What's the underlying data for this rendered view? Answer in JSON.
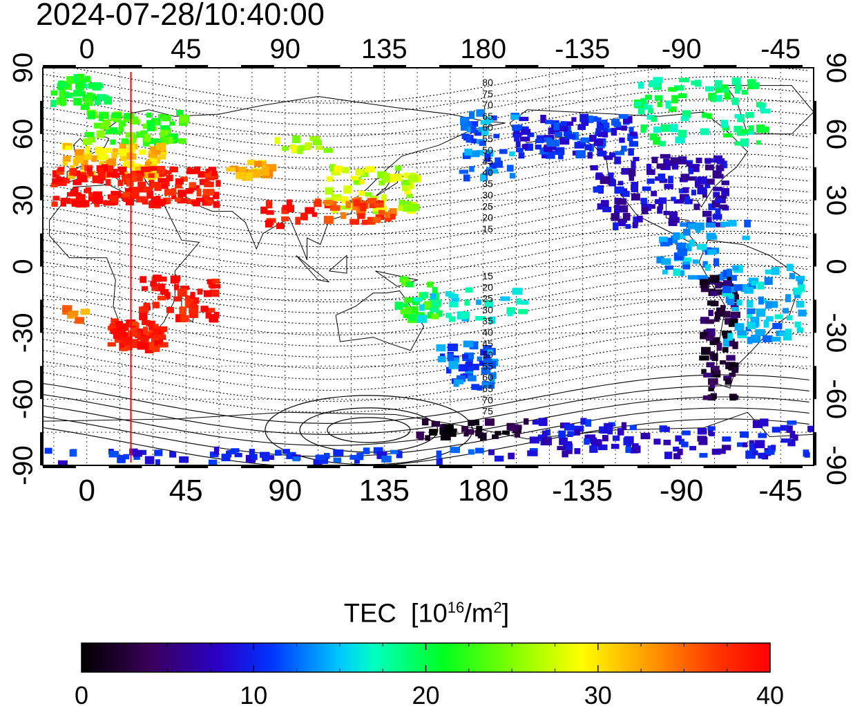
{
  "timestamp": "2024-07-28/10:40:00",
  "colorbar": {
    "label": "TEC",
    "unit_base": "[10",
    "unit_exp": "16",
    "unit_mid": "/m",
    "unit_exp2": "2",
    "unit_close": "]",
    "min": 0,
    "max": 40,
    "tick_labels": [
      "0",
      "10",
      "20",
      "30",
      "40"
    ],
    "tick_values": [
      0,
      10,
      20,
      30,
      40
    ],
    "minor_ticks": [
      2.5,
      5,
      7.5,
      12.5,
      15,
      17.5,
      22.5,
      25,
      27.5,
      32.5,
      35,
      37.5
    ],
    "stops": [
      {
        "v": 0,
        "c": "#000000"
      },
      {
        "v": 4,
        "c": "#3a005a"
      },
      {
        "v": 8,
        "c": "#2a00c8"
      },
      {
        "v": 11,
        "c": "#0033ff"
      },
      {
        "v": 15,
        "c": "#00c8ff"
      },
      {
        "v": 17,
        "c": "#00ffc0"
      },
      {
        "v": 21,
        "c": "#00ff20"
      },
      {
        "v": 25,
        "c": "#80ff00"
      },
      {
        "v": 29,
        "c": "#ffff00"
      },
      {
        "v": 33,
        "c": "#ff9900"
      },
      {
        "v": 37,
        "c": "#ff3300"
      },
      {
        "v": 40,
        "c": "#ff0000"
      }
    ]
  },
  "map": {
    "lon_ticks": [
      0,
      45,
      90,
      135,
      180,
      -135,
      -90,
      -45
    ],
    "lon_tick_labels": [
      "0",
      "45",
      "90",
      "135",
      "180",
      "-135",
      "-90",
      "-45"
    ],
    "lat_ticks": [
      90,
      60,
      30,
      0,
      -30,
      -60,
      -90
    ],
    "lat_tick_labels": [
      "90",
      "60",
      "30",
      "0",
      "-30",
      "-60",
      "-90"
    ],
    "lon_range": [
      -20,
      330
    ],
    "lat_range": [
      -90,
      90
    ],
    "terminator_lon": 20,
    "terminator_color": "#ff0000",
    "grid": true,
    "contour_labels_north": [
      "80",
      "75",
      "70",
      "65",
      "60",
      "55",
      "50",
      "45",
      "40",
      "35",
      "30",
      "25",
      "20",
      "15"
    ],
    "contour_labels_south": [
      "15",
      "20",
      "25",
      "30",
      "35",
      "40",
      "45",
      "50",
      "55",
      "60",
      "65",
      "70",
      "75"
    ]
  },
  "tec_regions": [
    {
      "lon": [
        -18,
        10
      ],
      "lat": [
        72,
        86
      ],
      "v": 21,
      "n": 40
    },
    {
      "lon": [
        0,
        45
      ],
      "lat": [
        55,
        70
      ],
      "v": 23,
      "n": 70
    },
    {
      "lon": [
        -10,
        35
      ],
      "lat": [
        40,
        55
      ],
      "v": 31,
      "n": 80
    },
    {
      "lon": [
        -15,
        60
      ],
      "lat": [
        28,
        45
      ],
      "v": 39,
      "n": 160
    },
    {
      "lon": [
        65,
        85
      ],
      "lat": [
        40,
        48
      ],
      "v": 32,
      "n": 25
    },
    {
      "lon": [
        75,
        110
      ],
      "lat": [
        52,
        58
      ],
      "v": 27,
      "n": 14
    },
    {
      "lon": [
        80,
        110
      ],
      "lat": [
        18,
        30
      ],
      "v": 39,
      "n": 20
    },
    {
      "lon": [
        110,
        150
      ],
      "lat": [
        25,
        45
      ],
      "v": 27,
      "n": 60
    },
    {
      "lon": [
        105,
        140
      ],
      "lat": [
        20,
        30
      ],
      "v": 36,
      "n": 30
    },
    {
      "lon": [
        -10,
        0
      ],
      "lat": [
        -25,
        -18
      ],
      "v": 34,
      "n": 8
    },
    {
      "lon": [
        25,
        60
      ],
      "lat": [
        -25,
        -5
      ],
      "v": 39,
      "n": 50
    },
    {
      "lon": [
        10,
        35
      ],
      "lat": [
        -38,
        -25
      ],
      "v": 39,
      "n": 70
    },
    {
      "lon": [
        140,
        160
      ],
      "lat": [
        -25,
        -5
      ],
      "v": 22,
      "n": 30
    },
    {
      "lon": [
        150,
        200
      ],
      "lat": [
        -25,
        -10
      ],
      "v": 16,
      "n": 30
    },
    {
      "lon": [
        160,
        185
      ],
      "lat": [
        -55,
        -35
      ],
      "v": 12,
      "n": 50
    },
    {
      "lon": [
        170,
        195
      ],
      "lat": [
        40,
        70
      ],
      "v": 13,
      "n": 45
    },
    {
      "lon": [
        195,
        250
      ],
      "lat": [
        50,
        68
      ],
      "v": 10,
      "n": 100
    },
    {
      "lon": [
        230,
        290
      ],
      "lat": [
        18,
        50
      ],
      "v": 8,
      "n": 130
    },
    {
      "lon": [
        250,
        310
      ],
      "lat": [
        55,
        85
      ],
      "v": 19,
      "n": 80
    },
    {
      "lon": [
        260,
        300
      ],
      "lat": [
        -5,
        20
      ],
      "v": 14,
      "n": 50
    },
    {
      "lon": [
        280,
        295
      ],
      "lat": [
        -60,
        -5
      ],
      "v": 3,
      "n": 80
    },
    {
      "lon": [
        290,
        325
      ],
      "lat": [
        -35,
        0
      ],
      "v": 14,
      "n": 70
    },
    {
      "lon": [
        150,
        200
      ],
      "lat": [
        -78,
        -70
      ],
      "v": 2,
      "n": 40
    },
    {
      "lon": [
        200,
        330
      ],
      "lat": [
        -86,
        -70
      ],
      "v": 9,
      "n": 110
    },
    {
      "lon": [
        -20,
        200
      ],
      "lat": [
        -89,
        -83
      ],
      "v": 10,
      "n": 60
    }
  ]
}
